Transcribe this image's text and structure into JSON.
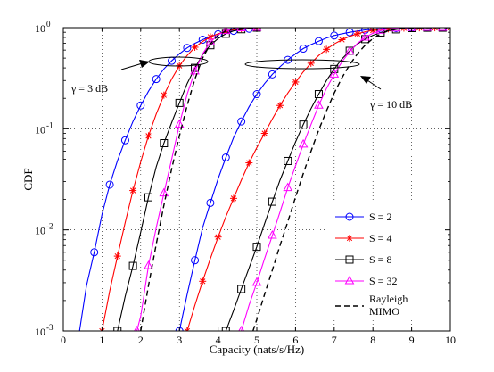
{
  "chart_data": {
    "type": "line",
    "xlabel": "Capacity (nats/s/Hz)",
    "ylabel": "CDF",
    "xlim": [
      0,
      10
    ],
    "ylim": [
      0.001,
      1
    ],
    "y_scale": "log",
    "grid": true,
    "legend_placement": "bottom-right",
    "x_ticks": [
      "0",
      "1",
      "2",
      "3",
      "4",
      "5",
      "6",
      "7",
      "8",
      "9",
      "10"
    ],
    "y_ticks": [
      {
        "value": 0.001,
        "base": "10",
        "exp": "-3"
      },
      {
        "value": 0.01,
        "base": "10",
        "exp": "-2"
      },
      {
        "value": 0.1,
        "base": "10",
        "exp": "-1"
      },
      {
        "value": 1,
        "base": "10",
        "exp": "0"
      }
    ],
    "annotations": [
      {
        "text": "γ = 3 dB"
      },
      {
        "text": "γ = 10 dB"
      }
    ],
    "series": [
      {
        "name": "S = 2",
        "color": "#0000ff",
        "marker": "circle",
        "line": "solid",
        "groups": [
          {
            "snr": "3 dB",
            "x": [
              0.4,
              0.6,
              0.8,
              1.0,
              1.2,
              1.4,
              1.6,
              1.8,
              2.0,
              2.2,
              2.4,
              2.6,
              2.8,
              3.0,
              3.2,
              3.4,
              3.6,
              3.8,
              4.0,
              4.2,
              4.4,
              4.6,
              4.8,
              5.0
            ],
            "y": [
              0.0009,
              0.0028,
              0.006,
              0.0142,
              0.028,
              0.0485,
              0.077,
              0.118,
              0.17,
              0.235,
              0.31,
              0.39,
              0.47,
              0.55,
              0.63,
              0.7,
              0.76,
              0.82,
              0.86,
              0.9,
              0.93,
              0.955,
              0.975,
              0.99
            ]
          },
          {
            "snr": "10 dB",
            "x": [
              3.0,
              3.2,
              3.4,
              3.6,
              3.8,
              4.0,
              4.2,
              4.4,
              4.6,
              4.8,
              5.0,
              5.2,
              5.4,
              5.6,
              5.8,
              6.0,
              6.2,
              6.4,
              6.6,
              6.8,
              7.0,
              7.2,
              7.4,
              7.6,
              7.8,
              8.0,
              8.2,
              8.4,
              8.6,
              8.8,
              9.0,
              9.2,
              9.4,
              9.6,
              9.8,
              10.0
            ],
            "y": [
              0.001,
              0.0023,
              0.005,
              0.0105,
              0.0185,
              0.032,
              0.052,
              0.082,
              0.118,
              0.165,
              0.22,
              0.28,
              0.345,
              0.41,
              0.48,
              0.55,
              0.62,
              0.68,
              0.735,
              0.79,
              0.835,
              0.87,
              0.9,
              0.925,
              0.95,
              0.965,
              0.975,
              0.985,
              0.99,
              0.993,
              0.995,
              0.997,
              0.998,
              0.999,
              0.999,
              1.0
            ]
          }
        ]
      },
      {
        "name": "S = 4",
        "color": "#ff0000",
        "marker": "asterisk",
        "line": "solid",
        "groups": [
          {
            "snr": "3 dB",
            "x": [
              1.0,
              1.2,
              1.4,
              1.6,
              1.8,
              2.0,
              2.2,
              2.4,
              2.6,
              2.8,
              3.0,
              3.2,
              3.4,
              3.6,
              3.8,
              4.0,
              4.2,
              4.4,
              4.6,
              4.8,
              5.0
            ],
            "y": [
              0.001,
              0.0025,
              0.0055,
              0.0118,
              0.0245,
              0.047,
              0.085,
              0.14,
              0.215,
              0.31,
              0.42,
              0.53,
              0.64,
              0.73,
              0.81,
              0.87,
              0.92,
              0.955,
              0.975,
              0.99,
              1.0
            ]
          },
          {
            "snr": "10 dB",
            "x": [
              3.2,
              3.4,
              3.6,
              3.8,
              4.0,
              4.2,
              4.4,
              4.6,
              4.8,
              5.0,
              5.2,
              5.4,
              5.6,
              5.8,
              6.0,
              6.2,
              6.4,
              6.6,
              6.8,
              7.0,
              7.2,
              7.4,
              7.6,
              7.8,
              8.0,
              8.2,
              8.4,
              8.6,
              8.8,
              9.0,
              9.2,
              9.4,
              9.6,
              9.8,
              10.0
            ],
            "y": [
              0.001,
              0.0018,
              0.0031,
              0.0052,
              0.0085,
              0.0135,
              0.0205,
              0.031,
              0.046,
              0.065,
              0.09,
              0.125,
              0.17,
              0.225,
              0.29,
              0.365,
              0.445,
              0.53,
              0.61,
              0.69,
              0.76,
              0.82,
              0.87,
              0.91,
              0.94,
              0.96,
              0.975,
              0.985,
              0.991,
              0.995,
              0.997,
              0.998,
              0.999,
              0.999,
              1.0
            ]
          }
        ]
      },
      {
        "name": "S = 8",
        "color": "#000000",
        "marker": "square",
        "line": "solid",
        "groups": [
          {
            "snr": "3 dB",
            "x": [
              1.4,
              1.6,
              1.8,
              2.0,
              2.2,
              2.4,
              2.6,
              2.8,
              3.0,
              3.2,
              3.4,
              3.6,
              3.8,
              4.0,
              4.2,
              4.4,
              4.6,
              4.8,
              5.0
            ],
            "y": [
              0.001,
              0.0022,
              0.0044,
              0.0095,
              0.021,
              0.042,
              0.072,
              0.115,
              0.18,
              0.28,
              0.4,
              0.54,
              0.67,
              0.78,
              0.87,
              0.93,
              0.965,
              0.985,
              1.0
            ]
          },
          {
            "snr": "10 dB",
            "x": [
              4.2,
              4.4,
              4.6,
              4.8,
              5.0,
              5.2,
              5.4,
              5.6,
              5.8,
              6.0,
              6.2,
              6.4,
              6.6,
              6.8,
              7.0,
              7.2,
              7.4,
              7.6,
              7.8,
              8.0,
              8.2,
              8.4,
              8.6,
              8.8,
              9.0,
              9.2,
              9.4,
              9.6,
              9.8,
              10.0
            ],
            "y": [
              0.001,
              0.0016,
              0.0026,
              0.0042,
              0.0068,
              0.0115,
              0.019,
              0.031,
              0.048,
              0.074,
              0.11,
              0.158,
              0.22,
              0.3,
              0.39,
              0.49,
              0.59,
              0.69,
              0.77,
              0.84,
              0.895,
              0.935,
              0.962,
              0.98,
              0.99,
              0.995,
              0.998,
              0.999,
              0.999,
              1.0
            ]
          }
        ]
      },
      {
        "name": "S = 32",
        "color": "#ff00ff",
        "marker": "triangle",
        "line": "solid",
        "groups": [
          {
            "snr": "3 dB",
            "x": [
              1.9,
              2.0,
              2.2,
              2.4,
              2.6,
              2.8,
              3.0,
              3.2,
              3.4,
              3.6,
              3.8,
              4.0,
              4.2,
              4.4,
              4.6,
              4.8,
              5.0
            ],
            "y": [
              0.001,
              0.0014,
              0.0044,
              0.0105,
              0.023,
              0.05,
              0.11,
              0.22,
              0.37,
              0.55,
              0.72,
              0.85,
              0.93,
              0.97,
              0.99,
              0.997,
              1.0
            ]
          },
          {
            "snr": "10 dB",
            "x": [
              4.6,
              4.8,
              5.0,
              5.2,
              5.4,
              5.6,
              5.8,
              6.0,
              6.2,
              6.4,
              6.6,
              6.8,
              7.0,
              7.2,
              7.4,
              7.6,
              7.8,
              8.0,
              8.2,
              8.4,
              8.6,
              8.8,
              9.0,
              9.2,
              9.4,
              9.6,
              9.8,
              10.0
            ],
            "y": [
              0.001,
              0.0018,
              0.003,
              0.0052,
              0.0088,
              0.015,
              0.026,
              0.043,
              0.07,
              0.11,
              0.17,
              0.25,
              0.345,
              0.46,
              0.58,
              0.7,
              0.8,
              0.88,
              0.935,
              0.97,
              0.986,
              0.994,
              0.998,
              0.999,
              0.999,
              1.0,
              1.0,
              1.0
            ]
          }
        ]
      },
      {
        "name": "Rayleigh MIMO",
        "color": "#000000",
        "marker": "none",
        "line": "dashed",
        "groups": [
          {
            "snr": "3 dB",
            "x": [
              2.0,
              2.2,
              2.4,
              2.6,
              2.8,
              3.0,
              3.2,
              3.4,
              3.6,
              3.8,
              4.0,
              4.2,
              4.4,
              4.6,
              4.8,
              5.0
            ],
            "y": [
              0.001,
              0.0028,
              0.0072,
              0.0175,
              0.04,
              0.085,
              0.17,
              0.31,
              0.5,
              0.69,
              0.84,
              0.93,
              0.975,
              0.992,
              0.998,
              1.0
            ]
          },
          {
            "snr": "10 dB",
            "x": [
              4.9,
              5.0,
              5.2,
              5.4,
              5.6,
              5.8,
              6.0,
              6.2,
              6.4,
              6.6,
              6.8,
              7.0,
              7.2,
              7.4,
              7.6,
              7.8,
              8.0,
              8.2,
              8.4,
              8.6,
              8.8,
              9.0,
              9.2,
              9.4,
              9.6,
              9.8,
              10.0
            ],
            "y": [
              0.001,
              0.0013,
              0.0023,
              0.004,
              0.007,
              0.012,
              0.021,
              0.036,
              0.06,
              0.097,
              0.15,
              0.225,
              0.32,
              0.43,
              0.55,
              0.67,
              0.78,
              0.87,
              0.93,
              0.967,
              0.985,
              0.994,
              0.998,
              0.999,
              1.0,
              1.0,
              1.0
            ]
          }
        ]
      }
    ]
  }
}
